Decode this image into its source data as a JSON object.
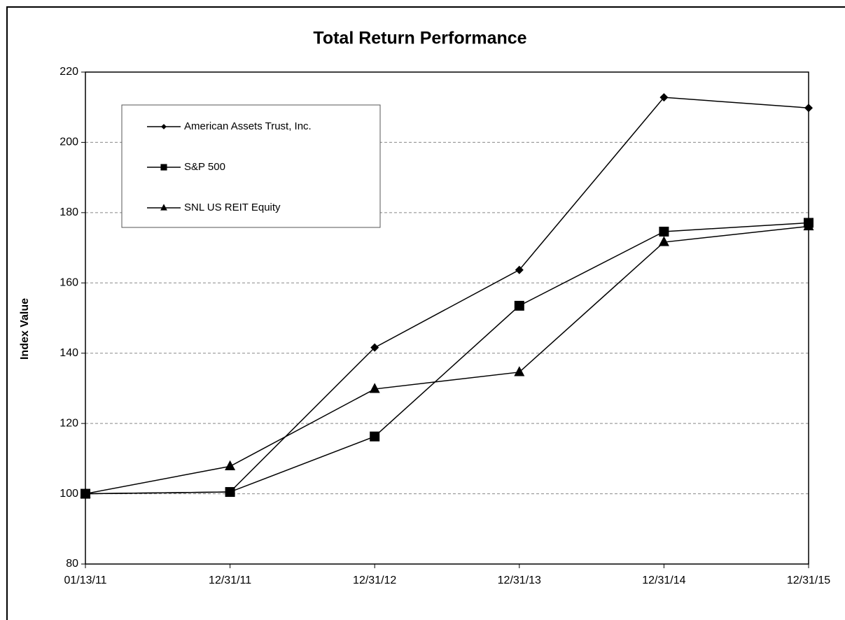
{
  "chart_data": {
    "type": "line",
    "title": "Total Return Performance",
    "y_label": "Index Value",
    "categories": [
      "01/13/11",
      "12/31/11",
      "12/31/12",
      "12/31/13",
      "12/31/14",
      "12/31/15"
    ],
    "series": [
      {
        "name": "American Assets Trust, Inc.",
        "color": "#000000",
        "marker": "diamond",
        "values": [
          100,
          100.5,
          141.6,
          163.7,
          212.8,
          209.8
        ]
      },
      {
        "name": "S&P 500",
        "color": "#000000",
        "marker": "square",
        "values": [
          100,
          100.5,
          116.3,
          153.5,
          174.6,
          177.1
        ]
      },
      {
        "name": "SNL US REIT Equity",
        "color": "#000000",
        "marker": "triangle",
        "values": [
          100,
          107.8,
          129.8,
          134.6,
          171.6,
          176.1
        ]
      }
    ],
    "ylim": [
      80,
      220
    ],
    "yticks": [
      80,
      100,
      120,
      140,
      160,
      180,
      200,
      220
    ],
    "grid": true,
    "legend": "upper left"
  }
}
